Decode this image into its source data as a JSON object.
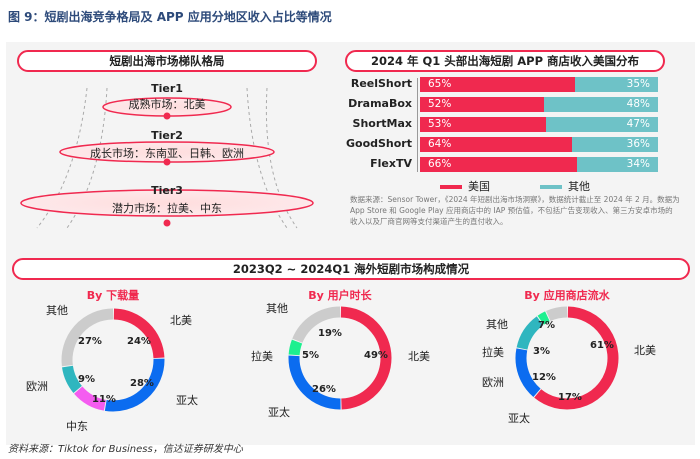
{
  "figure_title": "图 9：短剧出海竞争格局及 APP 应用分地区收入占比等情况",
  "tiers": {
    "title": "短剧出海市场梯队格局",
    "items": [
      {
        "name": "Tier1",
        "desc": "成熟市场：北美"
      },
      {
        "name": "Tier2",
        "desc": "成长市场：东南亚、日韩、欧洲"
      },
      {
        "name": "Tier3",
        "desc": "潜力市场：拉美、中东"
      }
    ]
  },
  "colors": {
    "red": "#f0294f",
    "teal": "#6ec2c7",
    "blue": "#0b6cf0",
    "gray": "#cccccc",
    "magenta": "#f45cf0",
    "cyan": "#2fb6bf",
    "green": "#1df08f"
  },
  "chart_data": [
    {
      "type": "bar",
      "title": "2024 年 Q1 头部出海短剧 APP 商店收入美国分布",
      "categories": [
        "ReelShort",
        "DramaBox",
        "ShortMax",
        "GoodShort",
        "FlexTV"
      ],
      "series": [
        {
          "name": "美国",
          "values": [
            65,
            52,
            53,
            64,
            66
          ],
          "labels": [
            "65%",
            "52%",
            "53%",
            "64%",
            "66%"
          ]
        },
        {
          "name": "其他",
          "values": [
            35,
            48,
            47,
            36,
            34
          ],
          "labels": [
            "35%",
            "48%",
            "47%",
            "36%",
            "34%"
          ]
        }
      ],
      "stacked": true,
      "legend": "bottom",
      "note": "数据来源：Sensor Tower，《2024 年短剧出海市场洞察》，数据统计截止至 2024 年 2 月。数据为 App Store 和 Google Play 应用商店中的 IAP 预估值，不包括广告变现收入、第三方安卓市场的收入以及厂商官网等支付渠道产生的直付收入。"
    },
    {
      "type": "pie",
      "section_title": "2023Q2 ~ 2024Q1 海外短剧市场构成情况",
      "title": "By 下载量",
      "slices": [
        {
          "name": "北美",
          "value": 24,
          "label": "24%",
          "color": "#f0294f"
        },
        {
          "name": "亚太",
          "value": 28,
          "label": "28%",
          "color": "#0b6cf0"
        },
        {
          "name": "中东",
          "value": 11,
          "label": "11%",
          "color": "#f45cf0"
        },
        {
          "name": "欧洲",
          "value": 9,
          "label": "9%",
          "color": "#2fb6bf"
        },
        {
          "name": "其他",
          "value": 27,
          "label": "27%",
          "color": "#cccccc"
        }
      ]
    },
    {
      "type": "pie",
      "title": "By 用户时长",
      "slices": [
        {
          "name": "北美",
          "value": 49,
          "label": "49%",
          "color": "#f0294f"
        },
        {
          "name": "亚太",
          "value": 26,
          "label": "26%",
          "color": "#0b6cf0"
        },
        {
          "name": "拉美",
          "value": 5,
          "label": "5%",
          "color": "#1df08f"
        },
        {
          "name": "其他",
          "value": 19,
          "label": "19%",
          "color": "#cccccc"
        }
      ]
    },
    {
      "type": "pie",
      "title": "By 应用商店流水",
      "slices": [
        {
          "name": "北美",
          "value": 61,
          "label": "61%",
          "color": "#f0294f"
        },
        {
          "name": "亚太",
          "value": 17,
          "label": "17%",
          "color": "#0b6cf0"
        },
        {
          "name": "欧洲",
          "value": 12,
          "label": "12%",
          "color": "#2fb6bf"
        },
        {
          "name": "拉美",
          "value": 3,
          "label": "3%",
          "color": "#1df08f"
        },
        {
          "name": "其他",
          "value": 7,
          "label": "7%",
          "color": "#cccccc"
        }
      ]
    }
  ],
  "source": "资料来源：Tiktok for Business，信达证券研发中心"
}
